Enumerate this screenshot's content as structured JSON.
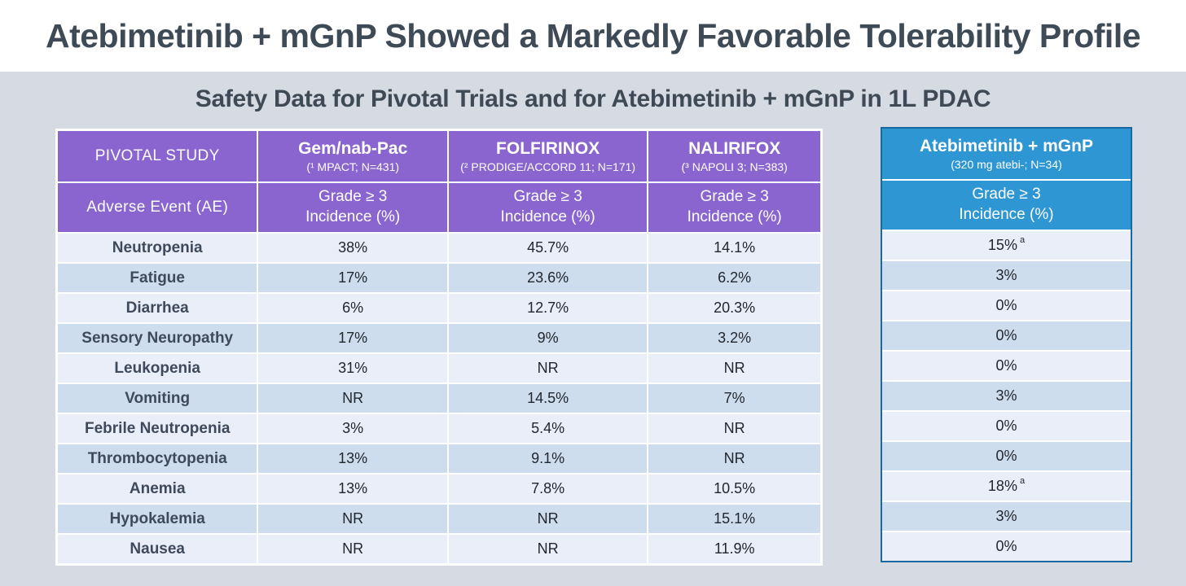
{
  "page": {
    "title": "Atebimetinib + mGnP Showed a Markedly Favorable Tolerability Profile",
    "subtitle": "Safety Data for Pivotal Trials and for Atebimetinib + mGnP in 1L PDAC"
  },
  "colors": {
    "page_background": "#d5dae3",
    "title_band_background": "#ffffff",
    "title_text": "#3e4a56",
    "pivotal_header_purple": "#8a65cf",
    "atebi_header_blue": "#2e96d3",
    "atebi_border_blue": "#19699f",
    "row_light": "#e9eef8",
    "row_dark": "#cddded",
    "ae_label_text": "#3e4a5c",
    "value_text": "#22272e"
  },
  "pivotal_table": {
    "corner_label": "PIVOTAL STUDY",
    "ae_header": "Adverse Event (AE)",
    "measure_line1": "Grade ≥ 3",
    "measure_line2": "Incidence (%)",
    "columns": [
      {
        "title": "Gem/nab-Pac",
        "subtitle": "(¹ MPACT; N=431)"
      },
      {
        "title": "FOLFIRINOX",
        "subtitle": "(² PRODIGE/ACCORD 11; N=171)"
      },
      {
        "title": "NALIRIFOX",
        "subtitle": "(³ NAPOLI 3; N=383)"
      }
    ],
    "rows": [
      {
        "ae": "Neutropenia",
        "values": [
          "38%",
          "45.7%",
          "14.1%"
        ]
      },
      {
        "ae": "Fatigue",
        "values": [
          "17%",
          "23.6%",
          "6.2%"
        ]
      },
      {
        "ae": "Diarrhea",
        "values": [
          "6%",
          "12.7%",
          "20.3%"
        ]
      },
      {
        "ae": "Sensory Neuropathy",
        "values": [
          "17%",
          "9%",
          "3.2%"
        ]
      },
      {
        "ae": "Leukopenia",
        "values": [
          "31%",
          "NR",
          "NR"
        ]
      },
      {
        "ae": "Vomiting",
        "values": [
          "NR",
          "14.5%",
          "7%"
        ]
      },
      {
        "ae": "Febrile Neutropenia",
        "values": [
          "3%",
          "5.4%",
          "NR"
        ]
      },
      {
        "ae": "Thrombocytopenia",
        "values": [
          "13%",
          "9.1%",
          "NR"
        ]
      },
      {
        "ae": "Anemia",
        "values": [
          "13%",
          "7.8%",
          "10.5%"
        ]
      },
      {
        "ae": "Hypokalemia",
        "values": [
          "NR",
          "NR",
          "15.1%"
        ]
      },
      {
        "ae": "Nausea",
        "values": [
          "NR",
          "NR",
          "11.9%"
        ]
      }
    ]
  },
  "atebi_table": {
    "title": "Atebimetinib + mGnP",
    "subtitle": "(320 mg atebi-; N=34)",
    "measure_line1": "Grade ≥ 3",
    "measure_line2": "Incidence (%)",
    "rows": [
      {
        "value": "15%",
        "note": "a"
      },
      {
        "value": "3%"
      },
      {
        "value": "0%"
      },
      {
        "value": "0%"
      },
      {
        "value": "0%"
      },
      {
        "value": "3%"
      },
      {
        "value": "0%"
      },
      {
        "value": "0%"
      },
      {
        "value": "18%",
        "note": "a"
      },
      {
        "value": "3%"
      },
      {
        "value": "0%"
      }
    ]
  }
}
